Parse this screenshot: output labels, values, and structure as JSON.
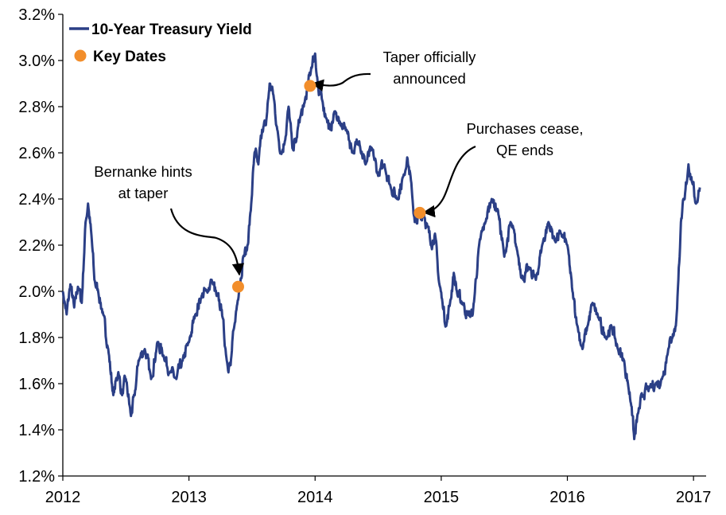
{
  "chart_data": {
    "type": "line",
    "title": "",
    "xlabel": "",
    "ylabel": "",
    "xlim": [
      2012.0,
      2017.1
    ],
    "ylim": [
      1.2,
      3.2
    ],
    "x_ticks": [
      2012,
      2013,
      2014,
      2015,
      2016,
      2017
    ],
    "x_tick_labels": [
      "2012",
      "2013",
      "2014",
      "2015",
      "2016",
      "2017"
    ],
    "y_ticks": [
      1.2,
      1.4,
      1.6,
      1.8,
      2.0,
      2.2,
      2.4,
      2.6,
      2.8,
      3.0,
      3.2
    ],
    "y_tick_labels": [
      "1.2%",
      "1.4%",
      "1.6%",
      "1.8%",
      "2.0%",
      "2.2%",
      "2.4%",
      "2.6%",
      "2.8%",
      "3.0%",
      "3.2%"
    ],
    "grid": false,
    "legend_position": "top-left",
    "series": [
      {
        "name": "10-Year Treasury Yield",
        "color": "#2B3F86",
        "x": [
          2012.0,
          2012.03,
          2012.06,
          2012.09,
          2012.12,
          2012.15,
          2012.18,
          2012.2,
          2012.23,
          2012.25,
          2012.28,
          2012.32,
          2012.36,
          2012.4,
          2012.44,
          2012.47,
          2012.5,
          2012.54,
          2012.57,
          2012.6,
          2012.65,
          2012.7,
          2012.75,
          2012.8,
          2012.85,
          2012.9,
          2012.95,
          2013.0,
          2013.05,
          2013.1,
          2013.14,
          2013.18,
          2013.22,
          2013.26,
          2013.3,
          2013.33,
          2013.36,
          2013.4,
          2013.43,
          2013.46,
          2013.49,
          2013.52,
          2013.55,
          2013.58,
          2013.61,
          2013.64,
          2013.67,
          2013.7,
          2013.73,
          2013.76,
          2013.79,
          2013.82,
          2013.85,
          2013.88,
          2013.91,
          2013.94,
          2013.97,
          2014.0,
          2014.03,
          2014.06,
          2014.09,
          2014.12,
          2014.16,
          2014.2,
          2014.25,
          2014.3,
          2014.35,
          2014.4,
          2014.45,
          2014.5,
          2014.55,
          2014.6,
          2014.65,
          2014.7,
          2014.73,
          2014.76,
          2014.79,
          2014.83,
          2014.86,
          2014.89,
          2014.92,
          2014.95,
          2014.98,
          2015.01,
          2015.04,
          2015.07,
          2015.1,
          2015.13,
          2015.17,
          2015.21,
          2015.25,
          2015.3,
          2015.35,
          2015.4,
          2015.45,
          2015.5,
          2015.55,
          2015.6,
          2015.65,
          2015.7,
          2015.75,
          2015.8,
          2015.85,
          2015.9,
          2015.95,
          2016.0,
          2016.04,
          2016.08,
          2016.12,
          2016.16,
          2016.2,
          2016.25,
          2016.3,
          2016.35,
          2016.4,
          2016.45,
          2016.48,
          2016.51,
          2016.53,
          2016.56,
          2016.6,
          2016.65,
          2016.7,
          2016.75,
          2016.8,
          2016.83,
          2016.86,
          2016.88,
          2016.9,
          2016.93,
          2016.96,
          2016.99,
          2017.02,
          2017.05
        ],
        "values": [
          2.0,
          1.9,
          2.03,
          1.93,
          2.02,
          1.95,
          2.3,
          2.38,
          2.22,
          2.05,
          2.0,
          1.9,
          1.75,
          1.55,
          1.65,
          1.55,
          1.62,
          1.46,
          1.55,
          1.7,
          1.75,
          1.62,
          1.78,
          1.72,
          1.65,
          1.62,
          1.7,
          1.78,
          1.9,
          1.98,
          2.0,
          2.05,
          1.98,
          1.92,
          1.7,
          1.68,
          1.85,
          2.02,
          2.15,
          2.18,
          2.35,
          2.6,
          2.55,
          2.7,
          2.72,
          2.9,
          2.85,
          2.7,
          2.6,
          2.65,
          2.8,
          2.62,
          2.65,
          2.75,
          2.8,
          2.88,
          2.97,
          3.03,
          2.85,
          2.82,
          2.75,
          2.7,
          2.78,
          2.72,
          2.7,
          2.6,
          2.65,
          2.55,
          2.62,
          2.5,
          2.55,
          2.45,
          2.4,
          2.5,
          2.58,
          2.48,
          2.3,
          2.32,
          2.35,
          2.28,
          2.2,
          2.25,
          2.05,
          1.95,
          1.85,
          1.95,
          2.08,
          1.98,
          1.95,
          1.9,
          1.9,
          2.2,
          2.3,
          2.4,
          2.35,
          2.15,
          2.3,
          2.18,
          2.05,
          2.1,
          2.05,
          2.2,
          2.3,
          2.22,
          2.25,
          2.2,
          2.0,
          1.85,
          1.75,
          1.85,
          1.95,
          1.88,
          1.8,
          1.85,
          1.75,
          1.7,
          1.6,
          1.5,
          1.36,
          1.47,
          1.55,
          1.58,
          1.6,
          1.62,
          1.75,
          1.8,
          1.85,
          2.05,
          2.3,
          2.4,
          2.55,
          2.47,
          2.38,
          2.45
        ]
      },
      {
        "name": "Key Dates",
        "color": "#F28E2B",
        "x": [
          2013.39,
          2013.96,
          2014.83
        ],
        "values": [
          2.02,
          2.89,
          2.34
        ]
      }
    ],
    "annotations": [
      {
        "lines": [
          "Bernanke hints",
          "at taper"
        ],
        "x": 2013.39,
        "y": 2.02
      },
      {
        "lines": [
          "Taper officially",
          "announced"
        ],
        "x": 2013.96,
        "y": 2.89
      },
      {
        "lines": [
          "Purchases cease,",
          "QE ends"
        ],
        "x": 2014.83,
        "y": 2.34
      }
    ]
  }
}
